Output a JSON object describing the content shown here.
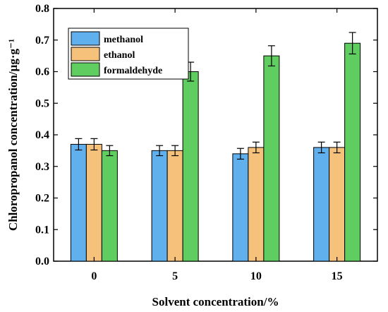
{
  "chart_data": {
    "type": "bar",
    "xlabel": "Solvent concentration/%",
    "ylabel": "Chloropropanol concentration/µg·g⁻¹",
    "categories": [
      "0",
      "5",
      "10",
      "15"
    ],
    "ylim": [
      0.0,
      0.8
    ],
    "yticks": [
      "0.0",
      "0.1",
      "0.2",
      "0.3",
      "0.4",
      "0.5",
      "0.6",
      "0.7",
      "0.8"
    ],
    "legend_position": "top-left",
    "grid": false,
    "series": [
      {
        "name": "methanol",
        "color": "#5fb0ec",
        "values": [
          0.37,
          0.35,
          0.34,
          0.36
        ],
        "errors": [
          0.018,
          0.016,
          0.017,
          0.017
        ]
      },
      {
        "name": "ethanol",
        "color": "#f6c27b",
        "values": [
          0.37,
          0.35,
          0.36,
          0.36
        ],
        "errors": [
          0.018,
          0.016,
          0.017,
          0.017
        ]
      },
      {
        "name": "formaldehyde",
        "color": "#5fcd5f",
        "values": [
          0.35,
          0.6,
          0.65,
          0.69
        ],
        "errors": [
          0.016,
          0.03,
          0.032,
          0.034
        ]
      }
    ]
  }
}
